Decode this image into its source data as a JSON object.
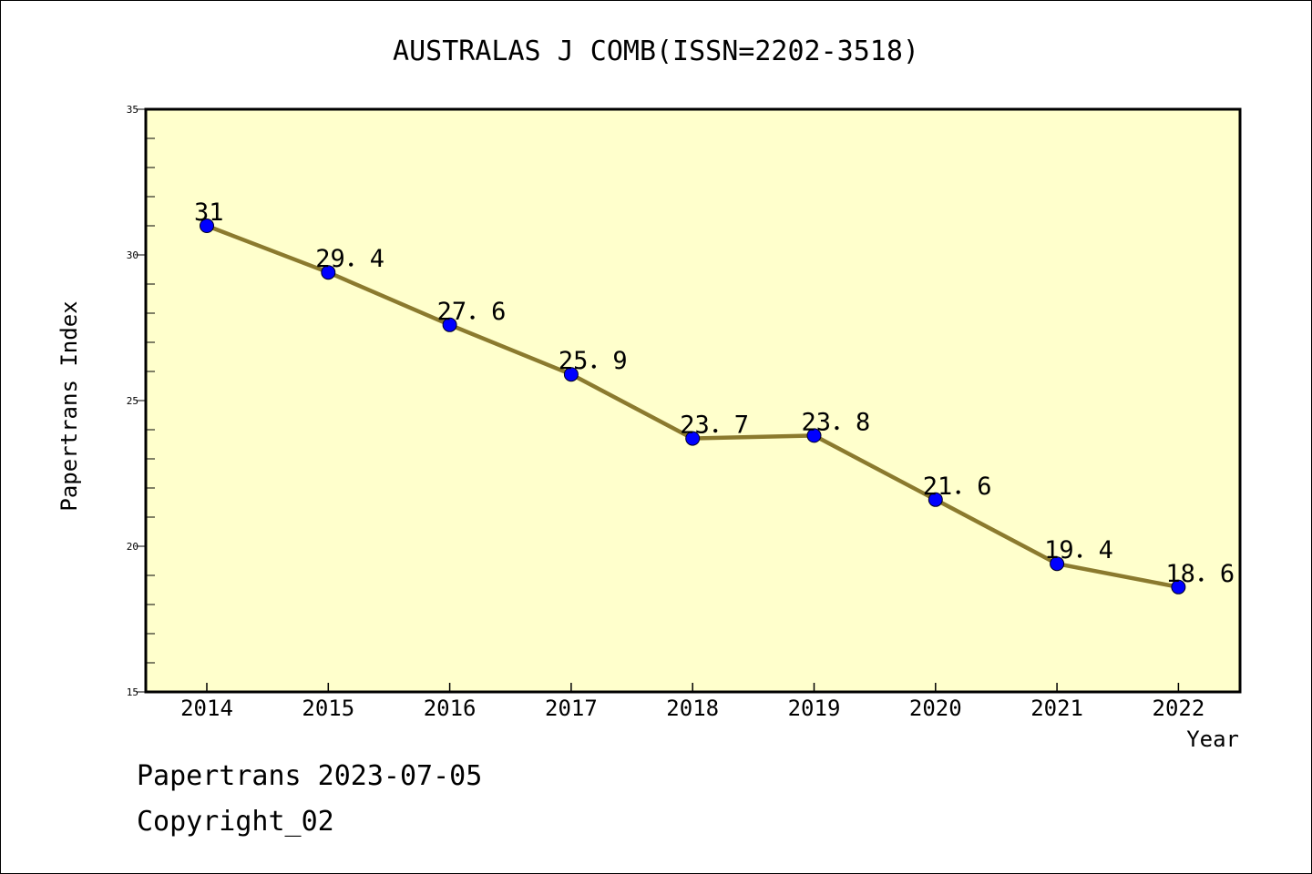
{
  "chart_data": {
    "type": "line",
    "title": "AUSTRALAS J COMB(ISSN=2202-3518)",
    "xlabel": "Year",
    "ylabel": "Papertrans Index",
    "ylim": [
      15,
      35
    ],
    "y_ticks": [
      "15",
      "20",
      "25",
      "30",
      "35"
    ],
    "categories": [
      "2014",
      "2015",
      "2016",
      "2017",
      "2018",
      "2019",
      "2020",
      "2021",
      "2022"
    ],
    "values": [
      31,
      29.4,
      27.6,
      25.9,
      23.7,
      23.8,
      21.6,
      19.4,
      18.6
    ],
    "data_labels": [
      "31",
      "29．4",
      "27．6",
      "25．9",
      "23．7",
      "23．8",
      "21．6",
      "19．4",
      "18．6"
    ],
    "grid": false,
    "colors": {
      "plot_background": "#ffffcc",
      "line": "#8b7a2e",
      "marker": "#0000ff"
    }
  },
  "footer": {
    "source": "Papertrans 2023-07-05",
    "copyright": "Copyright_02"
  }
}
